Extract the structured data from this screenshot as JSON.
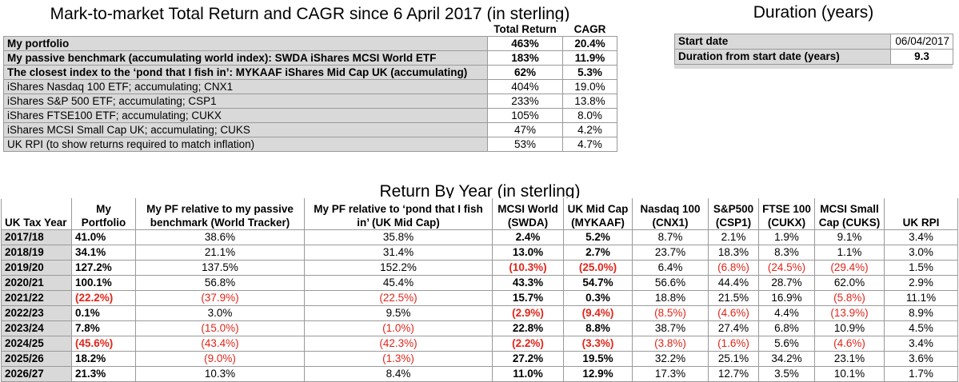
{
  "summary": {
    "title": "Mark-to-market Total Return and CAGR since 6 April 2017 (in sterling)",
    "headers": [
      "Total Return",
      "CAGR"
    ],
    "rows": [
      {
        "label": "My portfolio",
        "total": "463%",
        "cagr": "20.4%",
        "bold": true
      },
      {
        "label": "My passive benchmark (accumulating world index): SWDA iShares MCSI World ETF",
        "total": "183%",
        "cagr": "11.9%",
        "bold": true
      },
      {
        "label": "The closest index to the ‘pond that I fish in’: MYKAAF iShares Mid Cap UK (accumulating)",
        "total": "62%",
        "cagr": "5.3%",
        "bold": true
      },
      {
        "label": "iShares Nasdaq 100 ETF; accumulating; CNX1",
        "total": "404%",
        "cagr": "19.0%",
        "bold": false
      },
      {
        "label": "iShares S&P 500 ETF; accumulating; CSP1",
        "total": "233%",
        "cagr": "13.8%",
        "bold": false
      },
      {
        "label": "iShares FTSE100 ETF; accumulating; CUKX",
        "total": "105%",
        "cagr": "8.0%",
        "bold": false
      },
      {
        "label": "iShares MCSI Small Cap UK; accumulating; CUKS",
        "total": "47%",
        "cagr": "4.2%",
        "bold": false
      },
      {
        "label": "UK RPI (to show returns required to match inflation)",
        "total": "53%",
        "cagr": "4.7%",
        "bold": false
      }
    ]
  },
  "duration": {
    "title": "Duration (years)",
    "start_label": "Start date",
    "start_value": "06/04/2017",
    "duration_label": "Duration from start date (years)",
    "duration_value": "9.3"
  },
  "years": {
    "title": "Return By Year (in sterling)",
    "headers": [
      "UK Tax Year",
      "My Portfolio",
      "My PF relative to my passive benchmark (World Tracker)",
      "My PF relative to ‘pond that I fish in’ (UK Mid Cap)",
      "MCSI World (SWDA)",
      "UK Mid Cap (MYKAAF)",
      "Nasdaq 100 (CNX1)",
      "S&P500 (CSP1)",
      "FTSE 100 (CUKX)",
      "MCSI Small Cap (CUKS)",
      "UK RPI"
    ],
    "rows": [
      [
        "2017/18",
        "41.0%",
        "38.6%",
        "35.8%",
        "2.4%",
        "5.2%",
        "8.7%",
        "2.1%",
        "1.9%",
        "9.1%",
        "3.4%"
      ],
      [
        "2018/19",
        "34.1%",
        "21.1%",
        "31.4%",
        "13.0%",
        "2.7%",
        "23.7%",
        "18.3%",
        "8.3%",
        "1.1%",
        "3.0%"
      ],
      [
        "2019/20",
        "127.2%",
        "137.5%",
        "152.2%",
        "(10.3%)",
        "(25.0%)",
        "6.4%",
        "(6.8%)",
        "(24.5%)",
        "(29.4%)",
        "1.5%"
      ],
      [
        "2020/21",
        "100.1%",
        "56.8%",
        "45.4%",
        "43.3%",
        "54.7%",
        "56.6%",
        "44.4%",
        "28.7%",
        "62.0%",
        "2.9%"
      ],
      [
        "2021/22",
        "(22.2%)",
        "(37.9%)",
        "(22.5%)",
        "15.7%",
        "0.3%",
        "18.8%",
        "21.5%",
        "16.9%",
        "(5.8%)",
        "11.1%"
      ],
      [
        "2022/23",
        "0.1%",
        "3.0%",
        "9.5%",
        "(2.9%)",
        "(9.4%)",
        "(8.5%)",
        "(4.6%)",
        "4.4%",
        "(13.9%)",
        "8.9%"
      ],
      [
        "2023/24",
        "7.8%",
        "(15.0%)",
        "(1.0%)",
        "22.8%",
        "8.8%",
        "38.7%",
        "27.4%",
        "6.8%",
        "10.9%",
        "4.5%"
      ],
      [
        "2024/25",
        "(45.6%)",
        "(43.4%)",
        "(42.3%)",
        "(2.2%)",
        "(3.3%)",
        "(3.8%)",
        "(1.6%)",
        "5.6%",
        "(4.6%)",
        "3.4%"
      ],
      [
        "2025/26",
        "18.2%",
        "(9.0%)",
        "(1.3%)",
        "27.2%",
        "19.5%",
        "32.2%",
        "25.1%",
        "34.2%",
        "23.1%",
        "3.6%"
      ],
      [
        "2026/27",
        "21.3%",
        "10.3%",
        "8.4%",
        "11.0%",
        "12.9%",
        "17.3%",
        "12.7%",
        "3.5%",
        "10.1%",
        "1.7%"
      ]
    ],
    "negative_color": "#e0261a",
    "label_bg": "#d9d9d9"
  }
}
